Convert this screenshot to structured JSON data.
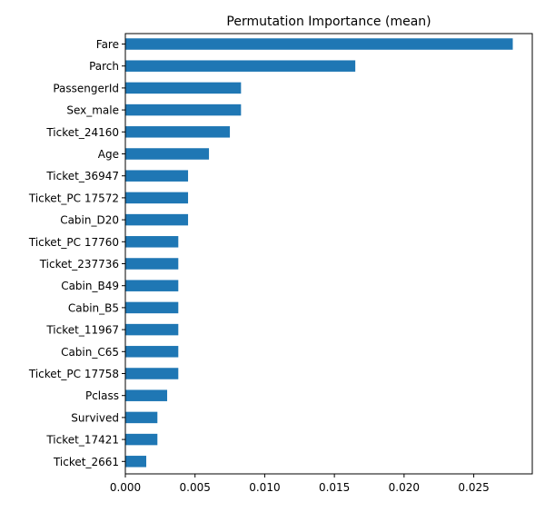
{
  "chart_data": {
    "type": "bar",
    "orientation": "horizontal",
    "title": "Permutation Importance (mean)",
    "xlabel": "",
    "ylabel": "",
    "xlim": [
      0.0,
      0.0292
    ],
    "xticks": [
      "0.000",
      "0.005",
      "0.010",
      "0.015",
      "0.020",
      "0.025"
    ],
    "xtick_values": [
      0.0,
      0.005,
      0.01,
      0.015,
      0.02,
      0.025
    ],
    "grid": false,
    "legend": false,
    "color": "#1f77b4",
    "categories": [
      "Fare",
      "Parch",
      "PassengerId",
      "Sex_male",
      "Ticket_24160",
      "Age",
      "Ticket_36947",
      "Ticket_PC 17572",
      "Cabin_D20",
      "Ticket_PC 17760",
      "Ticket_237736",
      "Cabin_B49",
      "Cabin_B5",
      "Ticket_11967",
      "Cabin_C65",
      "Ticket_PC 17758",
      "Pclass",
      "Survived",
      "Ticket_17421",
      "Ticket_2661"
    ],
    "values": [
      0.0278,
      0.0165,
      0.0083,
      0.0083,
      0.0075,
      0.006,
      0.0045,
      0.0045,
      0.0045,
      0.0038,
      0.0038,
      0.0038,
      0.0038,
      0.0038,
      0.0038,
      0.0038,
      0.003,
      0.0023,
      0.0023,
      0.0015
    ]
  }
}
